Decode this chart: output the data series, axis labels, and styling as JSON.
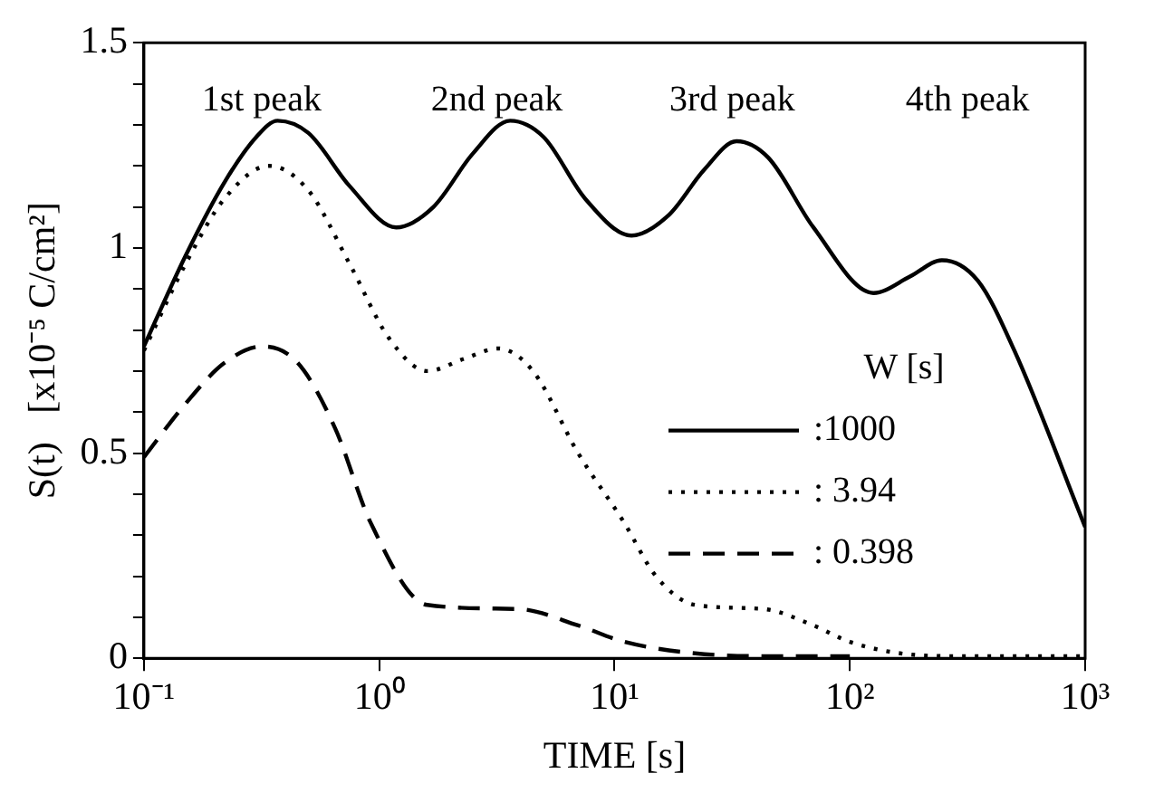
{
  "chart_data": {
    "type": "line",
    "xlabel": "TIME [s]",
    "ylabel": "S(t)   [x10⁻⁵ C/cm²]",
    "legend_title": "W [s]",
    "legend": "right",
    "log": "x",
    "grid": false,
    "marker": "none",
    "xlim": [
      0.1,
      1000
    ],
    "xticks": [
      {
        "value": 0.1,
        "label": "10⁻¹"
      },
      {
        "value": 1,
        "label": "10⁰"
      },
      {
        "value": 10,
        "label": "10¹"
      },
      {
        "value": 100,
        "label": "10²"
      },
      {
        "value": 1000,
        "label": "10³"
      }
    ],
    "ylim": [
      0,
      1.5
    ],
    "yticks": [
      0,
      {
        "value": 0.1,
        "label": null
      },
      {
        "value": 0.2,
        "label": null
      },
      {
        "value": 0.3,
        "label": null
      },
      {
        "value": 0.4,
        "label": null
      },
      0.5,
      {
        "value": 0.6,
        "label": null
      },
      {
        "value": 0.7,
        "label": null
      },
      {
        "value": 0.8,
        "label": null
      },
      {
        "value": 0.9,
        "label": null
      },
      1,
      {
        "value": 1.1,
        "label": null
      },
      {
        "value": 1.2,
        "label": null
      },
      {
        "value": 1.3,
        "label": null
      },
      {
        "value": 1.4,
        "label": null
      },
      1.5
    ],
    "annotations": [
      "1st peak",
      "2nd peak",
      "3rd peak",
      "4th peak"
    ],
    "series": [
      {
        "name": ":1000",
        "color": "#000000",
        "line_style": "solid",
        "x": [
          0.1,
          0.15,
          0.22,
          0.3,
          0.37,
          0.5,
          0.75,
          1.18,
          1.7,
          2.5,
          3.6,
          5,
          7.5,
          11.8,
          17,
          24,
          33,
          45,
          70,
          126,
          180,
          246,
          350,
          500,
          1000
        ],
        "values": [
          0.76,
          0.98,
          1.16,
          1.27,
          1.31,
          1.28,
          1.15,
          1.05,
          1.1,
          1.23,
          1.31,
          1.27,
          1.12,
          1.03,
          1.08,
          1.19,
          1.26,
          1.22,
          1.05,
          0.89,
          0.93,
          0.97,
          0.92,
          0.75,
          0.32
        ]
      },
      {
        "name": ": 3.94",
        "color": "#000000",
        "line_style": "dotted",
        "x": [
          0.1,
          0.15,
          0.22,
          0.34,
          0.5,
          0.75,
          1.1,
          1.6,
          2.3,
          3.2,
          4.5,
          7,
          11,
          15,
          22,
          43,
          70,
          100,
          175,
          300,
          1000
        ],
        "values": [
          0.75,
          0.96,
          1.12,
          1.2,
          1.14,
          0.96,
          0.78,
          0.7,
          0.73,
          0.755,
          0.7,
          0.5,
          0.33,
          0.2,
          0.13,
          0.12,
          0.08,
          0.04,
          0.01,
          0.005,
          0.005
        ]
      },
      {
        "name": ": 0.398",
        "color": "#000000",
        "line_style": "dashed",
        "x": [
          0.1,
          0.15,
          0.22,
          0.32,
          0.45,
          0.65,
          0.92,
          1.6,
          3.9,
          7,
          11,
          22,
          50,
          100
        ],
        "values": [
          0.49,
          0.62,
          0.72,
          0.76,
          0.72,
          0.56,
          0.33,
          0.13,
          0.12,
          0.08,
          0.04,
          0.012,
          0.005,
          0.005
        ]
      }
    ]
  }
}
